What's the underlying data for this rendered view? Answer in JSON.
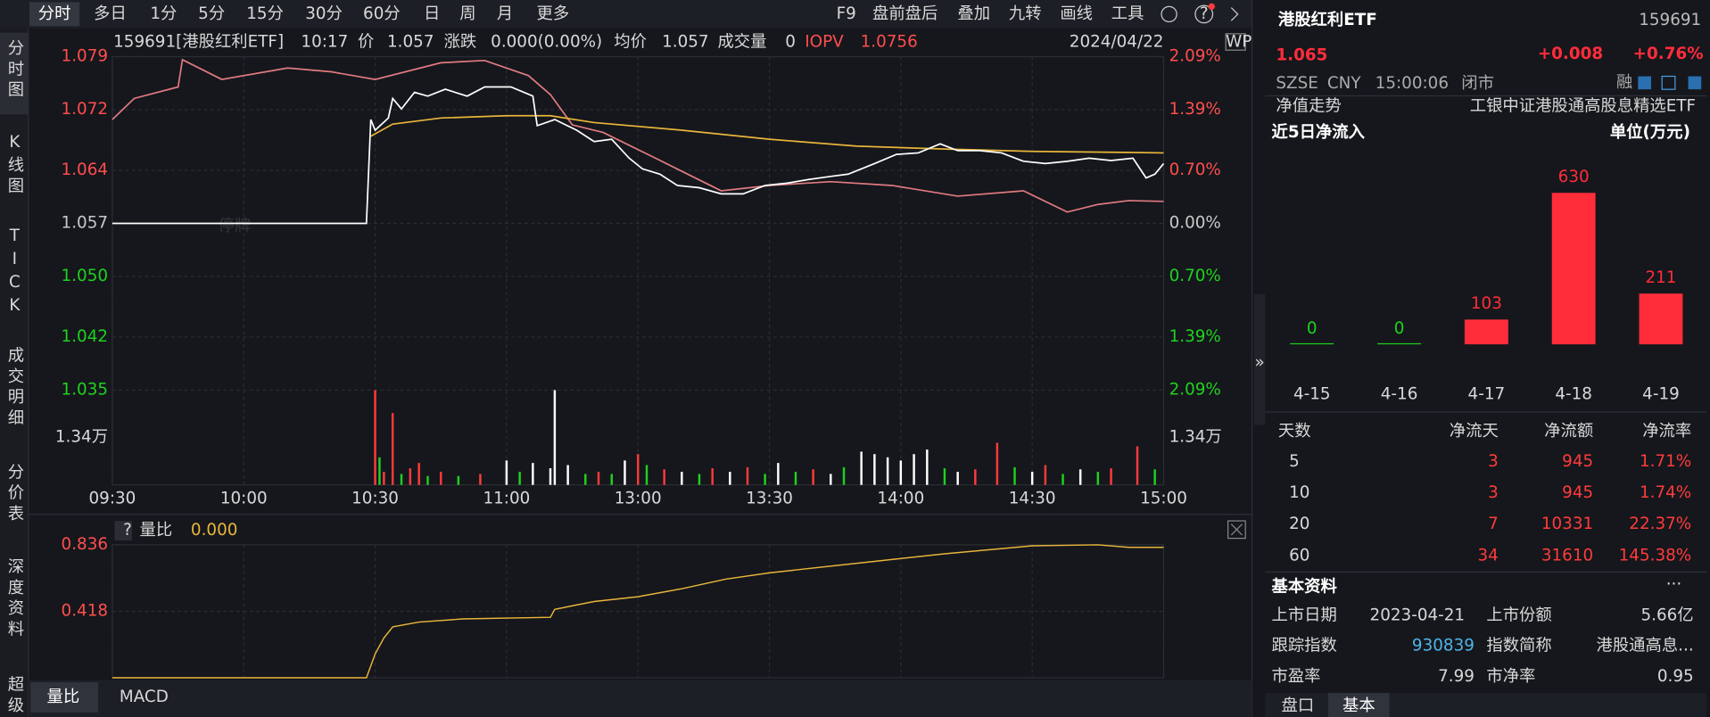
{
  "toolbar": {
    "tabs": [
      "分时",
      "多日",
      "1分",
      "5分",
      "15分",
      "30分",
      "60分",
      "日",
      "周",
      "月",
      "更多"
    ],
    "tools": [
      "F9",
      "盘前盘后",
      "叠加",
      "九转",
      "画线",
      "工具"
    ]
  },
  "sidebar": [
    "分时图",
    "K线图",
    "TICK",
    "成交明细",
    "分价表",
    "深度资料",
    "超级"
  ],
  "info_bar": {
    "name": "159691[港股红利ETF]",
    "time": "10:17",
    "price_label": "价",
    "price": "1.057",
    "change_label": "涨跌",
    "change": "0.000(0.00%)",
    "avg_label": "均价",
    "avg": "1.057",
    "volume_label": "成交量",
    "volume": "0",
    "iopv_label": "IOPV",
    "iopv": "1.0756",
    "date": "2024/04/22"
  },
  "price_chart": {
    "watermark": "停牌",
    "xlim": [
      0,
      240
    ],
    "xticks": [
      {
        "value": 0,
        "label": "09:30"
      },
      {
        "value": 30,
        "label": "10:00"
      },
      {
        "value": 60,
        "label": "10:30"
      },
      {
        "value": 90,
        "label": "11:00"
      },
      {
        "value": 120,
        "label": "13:00"
      },
      {
        "value": 150,
        "label": "13:30"
      },
      {
        "value": 180,
        "label": "14:00"
      },
      {
        "value": 210,
        "label": "14:30"
      },
      {
        "value": 240,
        "label": "15:00"
      }
    ],
    "ylim": [
      1.035,
      1.079
    ],
    "yticks": [
      1.035,
      1.042,
      {
        "value": 1.05,
        "label": "1.050"
      },
      1.057,
      1.064,
      1.072,
      1.079
    ],
    "pct_ticks": [
      {
        "value": -2.09,
        "label": "2.09%"
      },
      {
        "value": -1.39,
        "label": "1.39%"
      },
      {
        "value": -0.7,
        "label": "0.70%"
      },
      {
        "value": 0,
        "label": "0.00%"
      },
      {
        "value": 0.7,
        "label": "0.70%"
      },
      {
        "value": 1.39,
        "label": "1.39%"
      },
      {
        "value": 2.09,
        "label": "2.09%"
      }
    ],
    "series": [
      {
        "color": "#e07a80",
        "x": [
          0,
          5,
          15,
          16,
          25,
          40,
          50,
          60,
          75,
          85,
          95,
          100,
          105,
          112,
          124,
          139,
          150,
          164,
          178,
          193,
          208,
          218,
          225,
          232,
          240
        ],
        "values": [
          1.0707,
          1.0735,
          1.075,
          1.0786,
          1.076,
          1.0775,
          1.077,
          1.076,
          1.0782,
          1.0785,
          1.0765,
          1.074,
          1.07,
          1.069,
          1.0656,
          1.0613,
          1.062,
          1.0625,
          1.062,
          1.0606,
          1.0613,
          1.0585,
          1.0595,
          1.06,
          1.0599
        ]
      },
      {
        "color": "#e8b53a",
        "x": [
          59,
          64,
          75,
          90,
          100,
          110,
          130,
          150,
          170,
          190,
          210,
          240
        ],
        "values": [
          1.0685,
          1.0701,
          1.0709,
          1.0712,
          1.0712,
          1.0703,
          1.0693,
          1.0681,
          1.0672,
          1.0668,
          1.0665,
          1.0663
        ]
      },
      {
        "color": "#ffffff",
        "x": [
          0,
          58,
          59,
          60,
          63,
          64,
          66,
          69,
          72,
          76,
          81,
          85,
          91,
          96,
          97,
          101,
          106,
          110,
          114,
          118,
          121,
          125,
          129,
          134,
          139,
          144,
          149,
          154,
          159,
          164,
          168,
          174,
          179,
          184,
          189,
          193,
          198,
          203,
          208,
          213,
          218,
          223,
          228,
          233,
          236,
          238,
          240
        ],
        "values": [
          1.057,
          1.057,
          1.0707,
          1.0693,
          1.0709,
          1.0735,
          1.0721,
          1.0743,
          1.0738,
          1.0747,
          1.0738,
          1.075,
          1.075,
          1.0738,
          1.0699,
          1.0707,
          1.0693,
          1.0678,
          1.0681,
          1.0656,
          1.0642,
          1.0635,
          1.062,
          1.0617,
          1.0609,
          1.0609,
          1.062,
          1.0623,
          1.0628,
          1.0632,
          1.0635,
          1.0649,
          1.0661,
          1.0663,
          1.0675,
          1.0666,
          1.0666,
          1.0663,
          1.0652,
          1.0649,
          1.0652,
          1.0656,
          1.0653,
          1.0656,
          1.063,
          1.0635,
          1.0649
        ]
      }
    ]
  },
  "volume_chart": {
    "ylim": [
      0,
      26800
    ],
    "yticks": [
      {
        "value": 13400,
        "label": "1.34万"
      }
    ],
    "colors": {
      "r": "#ff3b3b",
      "g": "#1fd11f",
      "w": "#ffffff"
    },
    "x": [
      60,
      61,
      62,
      64,
      66,
      68,
      70,
      72,
      75,
      79,
      84,
      90,
      93,
      96,
      100,
      101,
      104,
      108,
      111,
      114,
      117,
      120,
      122,
      126,
      130,
      134,
      137,
      141,
      145,
      149,
      152,
      156,
      160,
      164,
      167,
      171,
      174,
      177,
      180,
      183,
      186,
      190,
      193,
      197,
      202,
      206,
      210,
      213,
      217,
      221,
      225,
      228,
      234,
      238
    ],
    "values": [
      26800,
      7800,
      3700,
      20300,
      3100,
      4700,
      6200,
      2500,
      3700,
      2500,
      3100,
      6900,
      3700,
      6200,
      4700,
      26800,
      5600,
      3100,
      3700,
      3100,
      6900,
      8700,
      5600,
      4400,
      3700,
      3100,
      4700,
      3700,
      5000,
      3100,
      6200,
      3700,
      4400,
      3100,
      5000,
      9400,
      8700,
      7800,
      6900,
      8700,
      10000,
      4700,
      3700,
      4400,
      11900,
      5000,
      3700,
      5600,
      3100,
      4400,
      3700,
      4700,
      10900,
      4400
    ],
    "dirs": [
      "r",
      "g",
      "r",
      "r",
      "g",
      "r",
      "r",
      "g",
      "r",
      "g",
      "r",
      "w",
      "g",
      "w",
      "w",
      "w",
      "w",
      "g",
      "r",
      "g",
      "w",
      "r",
      "g",
      "r",
      "w",
      "g",
      "r",
      "w",
      "r",
      "g",
      "w",
      "g",
      "r",
      "w",
      "g",
      "w",
      "w",
      "w",
      "w",
      "w",
      "w",
      "g",
      "w",
      "r",
      "r",
      "g",
      "w",
      "r",
      "g",
      "w",
      "g",
      "r",
      "r",
      "g"
    ]
  },
  "ratio_chart": {
    "help": "?",
    "label": "量比",
    "value": "0.000",
    "ylim": [
      0,
      0.836
    ],
    "yticks": [
      0.418,
      0.836
    ],
    "color": "#e8b53a",
    "x": [
      0,
      58,
      60,
      62,
      64,
      70,
      80,
      100,
      101,
      110,
      120,
      130,
      140,
      150,
      170,
      190,
      210,
      225,
      232,
      240
    ],
    "values": [
      0,
      0,
      0.15,
      0.25,
      0.32,
      0.35,
      0.37,
      0.38,
      0.43,
      0.48,
      0.51,
      0.56,
      0.62,
      0.66,
      0.72,
      0.78,
      0.83,
      0.836,
      0.82,
      0.82
    ]
  },
  "bottom_tabs": [
    "量比",
    "MACD"
  ],
  "quote": {
    "name": "港股红利ETF",
    "code": "159691",
    "price": "1.065",
    "change": "+0.008",
    "change_pct": "+0.76%",
    "exchange": "SZSE",
    "currency": "CNY",
    "time": "15:00:06",
    "status": "闭市",
    "margin": "融",
    "nav_label": "净值走势",
    "fund_name": "工银中证港股通高股息精选ETF"
  },
  "inflow": {
    "title": "近5日净流入",
    "unit": "单位(万元)",
    "categories": [
      "4-15",
      "4-16",
      "4-17",
      "4-18",
      "4-19"
    ],
    "values": [
      0,
      0,
      103,
      630,
      211
    ],
    "color": "#ff2d3a",
    "zero_color": "#1fd11f"
  },
  "inflow_table": {
    "header": [
      "天数",
      "净流天",
      "净流额",
      "净流率"
    ],
    "rows": [
      [
        "5",
        "3",
        "945",
        "1.71%"
      ],
      [
        "10",
        "3",
        "945",
        "1.74%"
      ],
      [
        "20",
        "7",
        "10331",
        "22.37%"
      ],
      [
        "60",
        "34",
        "31610",
        "145.38%"
      ]
    ]
  },
  "basic": {
    "title": "基本资料",
    "more": "···",
    "rows": [
      [
        "上市日期",
        "2023-04-21",
        "上市份额",
        "5.66亿"
      ],
      [
        "跟踪指数",
        "930839",
        "指数简称",
        "港股通高息..."
      ],
      [
        "市盈率",
        "7.99",
        "市净率",
        "0.95"
      ]
    ]
  },
  "panel_tabs": [
    "盘口",
    "基本"
  ]
}
